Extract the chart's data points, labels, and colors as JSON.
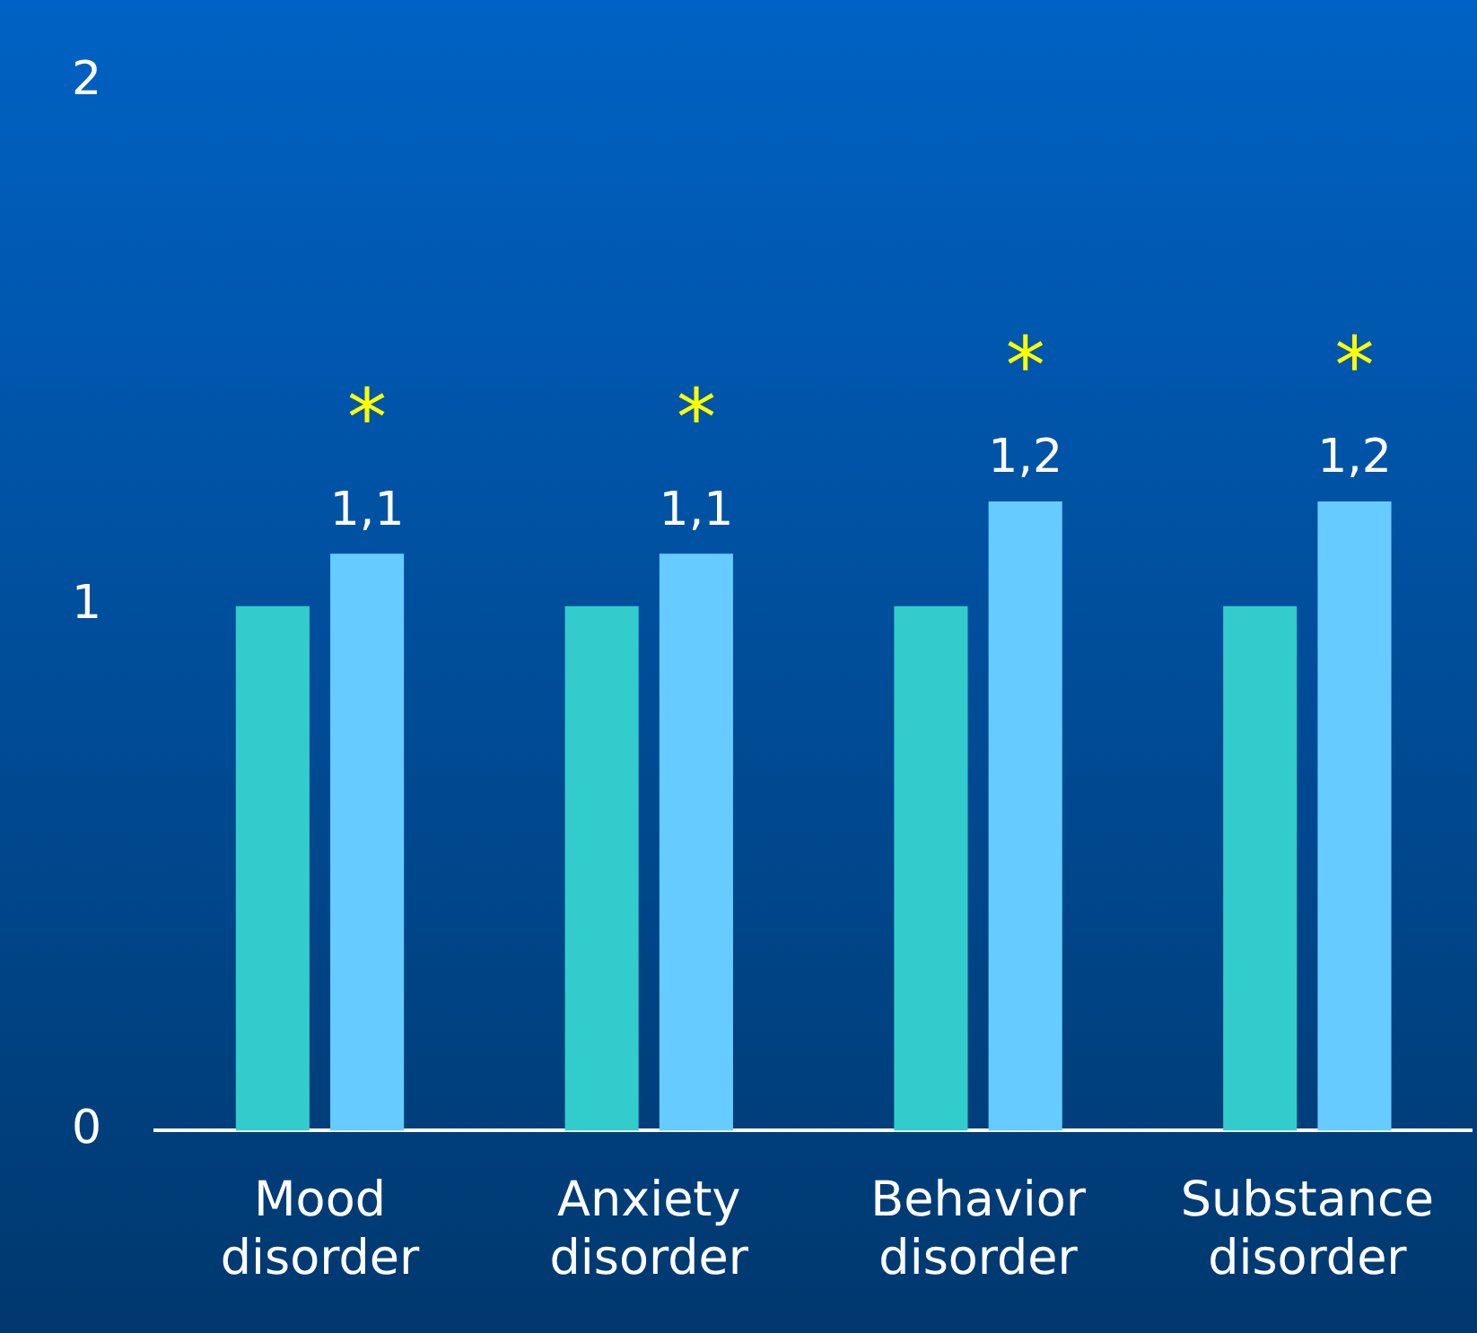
{
  "chart_data": {
    "type": "bar",
    "categories": [
      "Mood disorder",
      "Anxiety disorder",
      "Behavior disorder",
      "Substance disorder"
    ],
    "series": [
      {
        "color": "#33cccc",
        "values": [
          1,
          1,
          1,
          1
        ]
      },
      {
        "color": "#66ccff",
        "values": [
          1.1,
          1.1,
          1.2,
          1.2
        ],
        "value_labels": [
          "1,1",
          "1,1",
          "1,2",
          "1,2"
        ]
      }
    ],
    "ylim": [
      0,
      2
    ],
    "yticks": [
      0,
      1,
      2
    ],
    "grid": false,
    "legend": false,
    "annotations": [
      "*",
      "*",
      "*",
      "*"
    ]
  }
}
